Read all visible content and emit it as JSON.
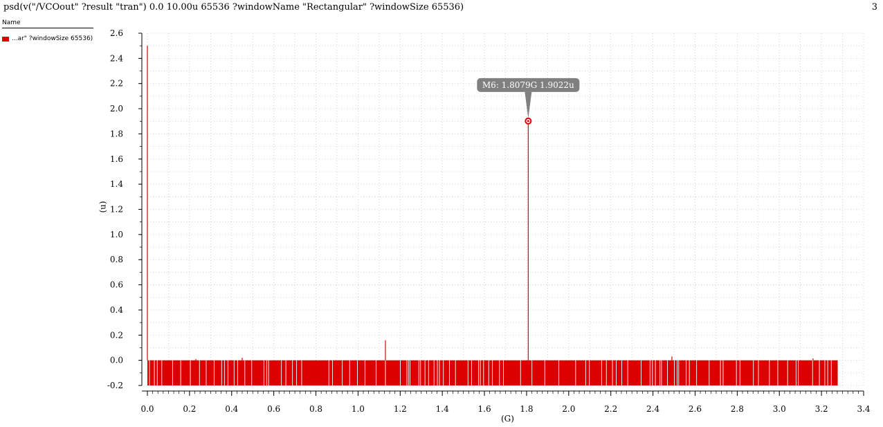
{
  "header": {
    "title": "psd(v(\"/VCOout\" ?result \"tran\")  0.0 10.00u 65536 ?windowName \"Rectangular\" ?windowSize 65536)",
    "page_number": "3"
  },
  "legend": {
    "header": "Name",
    "entries": [
      {
        "label": "...ar\" ?windowSize 65536)",
        "color": "#dd0000"
      }
    ]
  },
  "axes": {
    "xlabel": "(G)",
    "ylabel": "(u)"
  },
  "marker": {
    "label": "M6: 1.8079G 1.9022u",
    "x": 1.8079,
    "y": 1.9022
  },
  "chart_data": {
    "type": "line",
    "xlabel": "(G)",
    "ylabel": "(u)",
    "xlim": [
      0.0,
      3.4
    ],
    "ylim": [
      -0.2,
      2.6
    ],
    "xticks": [
      "0.0",
      "0.2",
      "0.4",
      "0.6",
      "0.8",
      "1.0",
      "1.2",
      "1.4",
      "1.6",
      "1.8",
      "2.0",
      "2.2",
      "2.4",
      "2.6",
      "2.8",
      "3.0",
      "3.2",
      "3.4"
    ],
    "yticks": [
      "-0.2",
      "0.0",
      "0.2",
      "0.4",
      "0.6",
      "0.8",
      "1.0",
      "1.2",
      "1.4",
      "1.6",
      "1.8",
      "2.0",
      "2.2",
      "2.4",
      "2.6"
    ],
    "grid": true,
    "series": [
      {
        "name": "...ar\" ?windowSize 65536)",
        "color": "#dd0000",
        "noise_band": [
          0.0,
          3.277,
          -0.2,
          0.0
        ],
        "peaks": [
          {
            "x": 0.0,
            "y": 2.5
          },
          {
            "x": 0.23,
            "y": 0.01
          },
          {
            "x": 0.45,
            "y": 0.02
          },
          {
            "x": 1.13,
            "y": 0.16
          },
          {
            "x": 1.8079,
            "y": 1.9022
          },
          {
            "x": 2.49,
            "y": 0.03
          },
          {
            "x": 3.16,
            "y": 0.015
          }
        ]
      }
    ]
  }
}
